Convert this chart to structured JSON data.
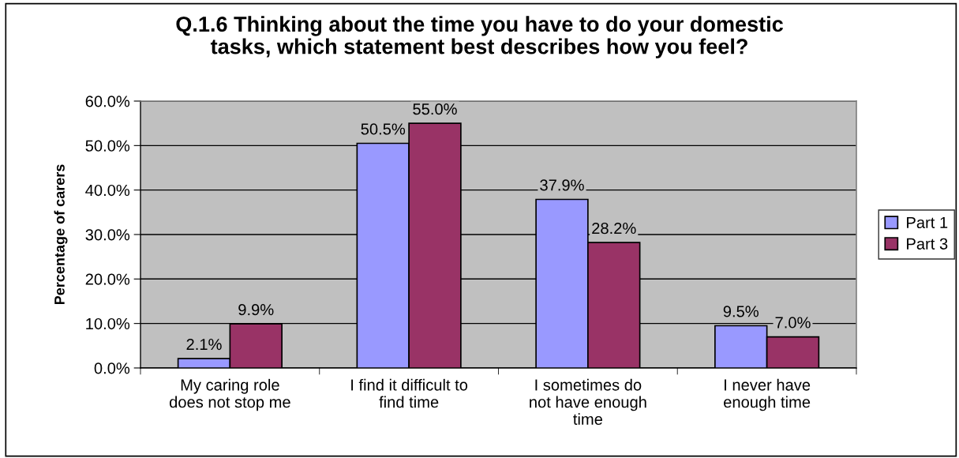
{
  "chart_data": {
    "type": "bar",
    "title": "Q.1.6 Thinking about the time you have to do your domestic\ntasks, which statement best describes how you feel?",
    "ylabel": "Percentage of carers",
    "categories": [
      "My caring role\ndoes not stop me",
      "I find it difficult to\nfind time",
      "I sometimes do\nnot have enough\ntime",
      "I never have\nenough time"
    ],
    "series": [
      {
        "name": "Part 1",
        "color": "#9999ff",
        "values": [
          2.1,
          50.5,
          37.9,
          9.5
        ],
        "value_labels": [
          "2.1%",
          "50.5%",
          "37.9%",
          "9.5%"
        ]
      },
      {
        "name": "Part 3",
        "color": "#993366",
        "values": [
          9.9,
          55.0,
          28.2,
          7.0
        ],
        "value_labels": [
          "9.9%",
          "55.0%",
          "28.2%",
          "7.0%"
        ]
      }
    ],
    "ylim": [
      0,
      60
    ],
    "yticks": [
      {
        "value": 0,
        "label": "0.0%"
      },
      {
        "value": 10,
        "label": "10.0%"
      },
      {
        "value": 20,
        "label": "20.0%"
      },
      {
        "value": 30,
        "label": "30.0%"
      },
      {
        "value": 40,
        "label": "40.0%"
      },
      {
        "value": 50,
        "label": "50.0%"
      },
      {
        "value": 60,
        "label": "60.0%"
      }
    ],
    "grid": "y",
    "legend": "right"
  }
}
